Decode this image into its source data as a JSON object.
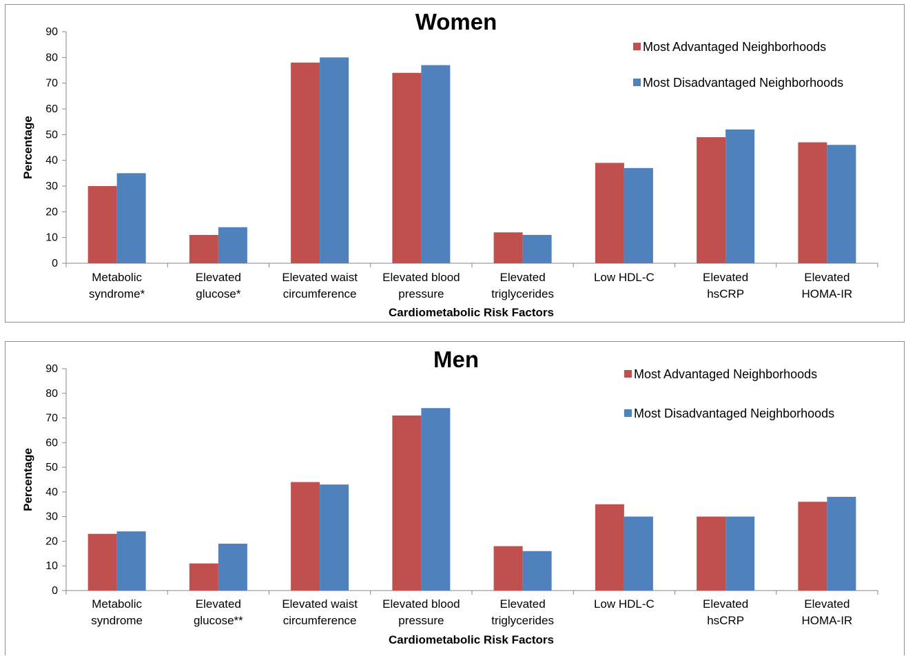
{
  "chart_data": [
    {
      "type": "bar",
      "title": "Women",
      "xlabel": "Cardiometabolic Risk Factors",
      "ylabel": "Percentage",
      "ylim": [
        0,
        90
      ],
      "yticks": [
        0,
        10,
        20,
        30,
        40,
        50,
        60,
        70,
        80,
        90
      ],
      "grid": false,
      "legend_position": "top-right",
      "categories": [
        [
          "Metabolic",
          "syndrome*"
        ],
        [
          "Elevated",
          "glucose*"
        ],
        [
          "Elevated waist",
          "circumference"
        ],
        [
          "Elevated blood",
          "pressure"
        ],
        [
          "Elevated",
          "triglycerides"
        ],
        [
          "Low HDL-C"
        ],
        [
          "Elevated",
          "hsCRP"
        ],
        [
          "Elevated",
          "HOMA-IR"
        ]
      ],
      "series": [
        {
          "name": "Most Advantaged Neighborhoods",
          "color": "#c0504d",
          "values": [
            30,
            11,
            78,
            74,
            12,
            39,
            49,
            47
          ]
        },
        {
          "name": "Most Disadvantaged Neighborhoods",
          "color": "#4f81bd",
          "values": [
            35,
            14,
            80,
            77,
            11,
            37,
            52,
            46
          ]
        }
      ]
    },
    {
      "type": "bar",
      "title": "Men",
      "xlabel": "Cardiometabolic Risk Factors",
      "ylabel": "Percentage",
      "ylim": [
        0,
        90
      ],
      "yticks": [
        0,
        10,
        20,
        30,
        40,
        50,
        60,
        70,
        80,
        90
      ],
      "grid": false,
      "legend_position": "top-right",
      "categories": [
        [
          "Metabolic",
          "syndrome"
        ],
        [
          "Elevated",
          "glucose**"
        ],
        [
          "Elevated waist",
          "circumference"
        ],
        [
          "Elevated blood",
          "pressure"
        ],
        [
          "Elevated",
          "triglycerides"
        ],
        [
          "Low HDL-C"
        ],
        [
          "Elevated",
          "hsCRP"
        ],
        [
          "Elevated",
          "HOMA-IR"
        ]
      ],
      "series": [
        {
          "name": "Most Advantaged Neighborhoods",
          "color": "#c0504d",
          "values": [
            23,
            11,
            44,
            71,
            18,
            35,
            30,
            36
          ]
        },
        {
          "name": "Most Disadvantaged Neighborhoods",
          "color": "#4f81bd",
          "values": [
            24,
            19,
            43,
            74,
            16,
            30,
            30,
            38
          ]
        }
      ]
    }
  ]
}
